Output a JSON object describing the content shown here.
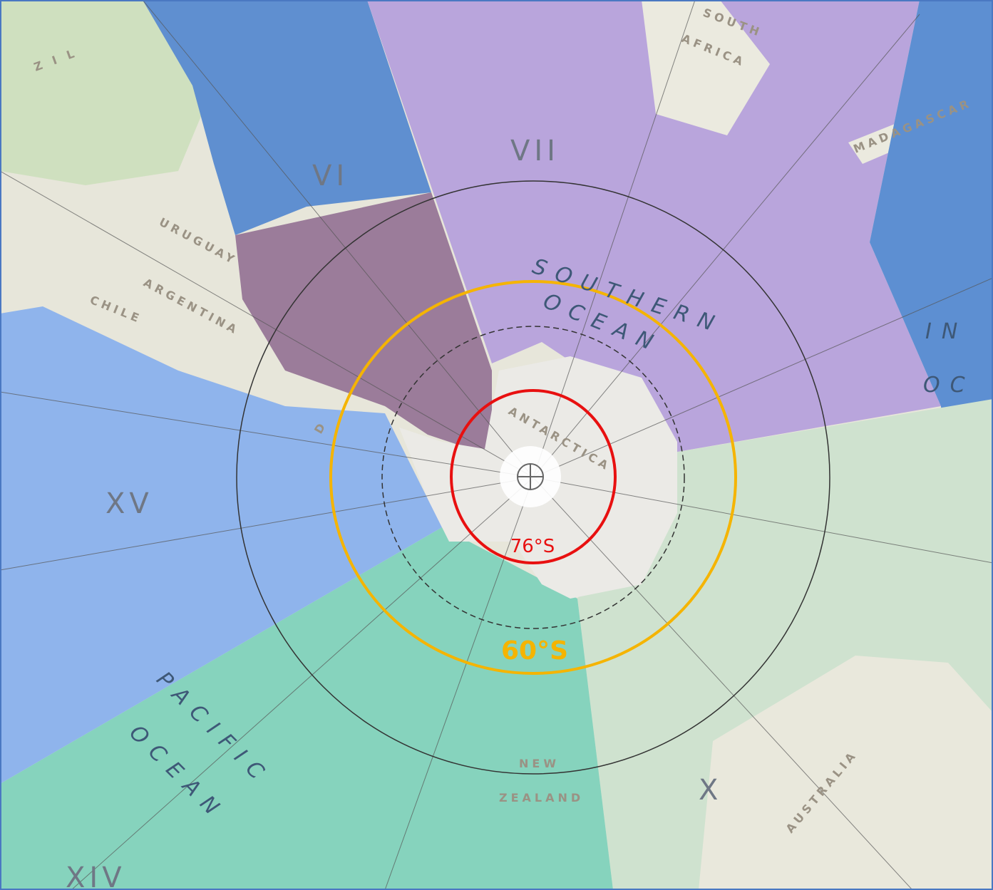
{
  "map": {
    "sector_labels": [
      "VI",
      "VII",
      "X",
      "XIV",
      "XV"
    ],
    "place_labels": [
      "SOUTH",
      "AFRICA",
      "MADAGASCAR",
      "URUGUAY",
      "ARGENTINA",
      "CHILE",
      "ANTARCTICA",
      "NEW",
      "ZEALAND",
      "AUSTRALIA",
      "Z I L",
      "D"
    ],
    "ocean_labels": [
      "SOUTHERN",
      "OCEAN",
      "PACIFIC",
      "OCEAN",
      "IN",
      "OC"
    ]
  },
  "annotations": {
    "inner_circle": "76°S",
    "outer_circle": "60°S"
  }
}
